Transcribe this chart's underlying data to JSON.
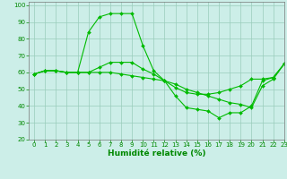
{
  "xlabel": "Humidité relative (%)",
  "background_color": "#cceee8",
  "grid_color": "#99ccbb",
  "line_color": "#00bb00",
  "xlim": [
    -0.5,
    23
  ],
  "ylim": [
    20,
    102
  ],
  "yticks": [
    20,
    30,
    40,
    50,
    60,
    70,
    80,
    90,
    100
  ],
  "xticks": [
    0,
    1,
    2,
    3,
    4,
    5,
    6,
    7,
    8,
    9,
    10,
    11,
    12,
    13,
    14,
    15,
    16,
    17,
    18,
    19,
    20,
    21,
    22,
    23
  ],
  "series1_x": [
    0,
    1,
    2,
    3,
    4,
    5,
    6,
    7,
    8,
    9,
    10,
    11,
    12,
    13,
    14,
    15,
    16,
    17,
    18,
    19,
    20,
    21,
    22,
    23
  ],
  "series1_y": [
    59,
    61,
    61,
    60,
    60,
    84,
    93,
    95,
    95,
    95,
    76,
    61,
    55,
    46,
    39,
    38,
    37,
    33,
    36,
    36,
    40,
    55,
    57,
    65
  ],
  "series2_x": [
    0,
    1,
    2,
    3,
    4,
    5,
    6,
    7,
    8,
    9,
    10,
    11,
    12,
    13,
    14,
    15,
    16,
    17,
    18,
    19,
    20,
    21,
    22,
    23
  ],
  "series2_y": [
    59,
    61,
    61,
    60,
    60,
    60,
    63,
    66,
    66,
    66,
    62,
    59,
    55,
    51,
    48,
    47,
    47,
    48,
    50,
    52,
    56,
    56,
    57,
    65
  ],
  "series3_x": [
    0,
    1,
    2,
    3,
    4,
    5,
    6,
    7,
    8,
    9,
    10,
    11,
    12,
    13,
    14,
    15,
    16,
    17,
    18,
    19,
    20,
    21,
    22,
    23
  ],
  "series3_y": [
    59,
    61,
    61,
    60,
    60,
    60,
    60,
    60,
    59,
    58,
    57,
    56,
    55,
    53,
    50,
    48,
    46,
    44,
    42,
    41,
    39,
    52,
    56,
    65
  ],
  "marker_style": "D",
  "marker_size": 2.0,
  "line_width": 0.8,
  "tick_fontsize": 5.0,
  "xlabel_fontsize": 6.5,
  "tick_color": "#008800"
}
